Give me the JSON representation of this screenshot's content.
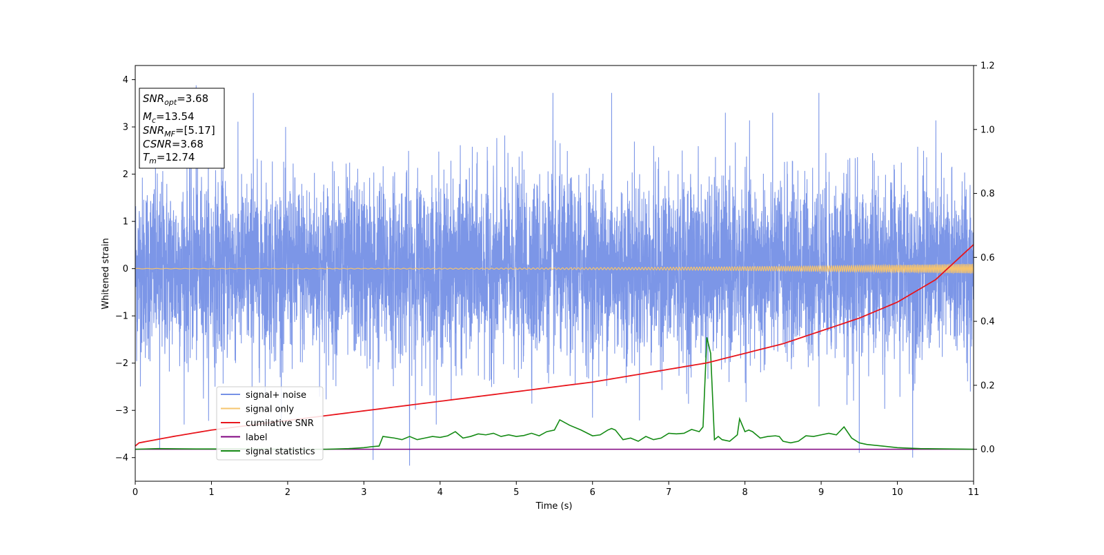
{
  "chart_data": {
    "type": "line",
    "xlabel": "Time (s)",
    "ylabel": "Whitened strain",
    "xlim": [
      0,
      11
    ],
    "ylim": [
      -4.5,
      4.3
    ],
    "ylim_right": [
      -0.1,
      1.2
    ],
    "x_ticks": [
      "0",
      "1",
      "2",
      "3",
      "4",
      "5",
      "6",
      "7",
      "8",
      "9",
      "10",
      "11"
    ],
    "y_ticks": [
      "−4",
      "−3",
      "−2",
      "−1",
      "0",
      "1",
      "2",
      "3",
      "4"
    ],
    "y_ticks_right": [
      "0.0",
      "0.2",
      "0.4",
      "0.6",
      "0.8",
      "1.0",
      "1.2"
    ],
    "grid": false,
    "legend_position": "lower-left",
    "stats_box": {
      "snr_opt": "=3.68",
      "mc": "=13.54",
      "snr_mf": "=[5.17]",
      "csnr": "=3.68",
      "tm": "=12.74"
    },
    "series": [
      {
        "name": "signal+ noise",
        "axis": "left",
        "color": "#7590e6",
        "description_kind": "noise",
        "noise_std": 0.95,
        "notable_peaks": [
          [
            0.8,
            3.88
          ],
          [
            1.55,
            3.72
          ],
          [
            5.48,
            3.72
          ],
          [
            6.25,
            3.72
          ],
          [
            8.97,
            3.72
          ],
          [
            3.6,
            -4.17
          ],
          [
            3.12,
            -4.05
          ],
          [
            9.5,
            -3.9
          ],
          [
            0.32,
            -3.8
          ],
          [
            10.2,
            -4.0
          ]
        ]
      },
      {
        "name": "signal only",
        "axis": "left",
        "color": "#f6c46e",
        "chirp": {
          "amplitude_start": 0.005,
          "amplitude_end": 0.1
        }
      },
      {
        "name": "cumilative SNR",
        "axis": "right",
        "color": "#e8141b",
        "x": [
          0,
          0.05,
          0.5,
          1,
          2,
          3,
          4,
          5,
          6,
          7,
          7.5,
          8,
          8.5,
          9,
          9.5,
          10,
          10.5,
          11
        ],
        "y": [
          0.01,
          0.02,
          0.04,
          0.06,
          0.09,
          0.12,
          0.15,
          0.18,
          0.21,
          0.25,
          0.27,
          0.3,
          0.33,
          0.37,
          0.41,
          0.46,
          0.53,
          0.64
        ]
      },
      {
        "name": "label",
        "axis": "right",
        "color": "#7f007f",
        "x": [
          0,
          11
        ],
        "y": [
          0,
          0
        ]
      },
      {
        "name": "signal statistics",
        "axis": "right",
        "color": "#138a13",
        "x": [
          0,
          0.3,
          0.8,
          1.5,
          2.0,
          2.5,
          2.8,
          3.0,
          3.1,
          3.2,
          3.25,
          3.4,
          3.5,
          3.6,
          3.7,
          3.8,
          3.9,
          4.0,
          4.1,
          4.2,
          4.3,
          4.4,
          4.5,
          4.6,
          4.7,
          4.8,
          4.9,
          5.0,
          5.1,
          5.2,
          5.3,
          5.4,
          5.5,
          5.57,
          5.7,
          5.85,
          6.0,
          6.1,
          6.2,
          6.25,
          6.3,
          6.4,
          6.5,
          6.6,
          6.7,
          6.8,
          6.9,
          7.0,
          7.1,
          7.2,
          7.3,
          7.4,
          7.45,
          7.5,
          7.55,
          7.6,
          7.65,
          7.7,
          7.8,
          7.9,
          7.93,
          8.0,
          8.05,
          8.1,
          8.2,
          8.3,
          8.4,
          8.45,
          8.5,
          8.6,
          8.7,
          8.8,
          8.9,
          9.0,
          9.1,
          9.2,
          9.3,
          9.4,
          9.5,
          9.6,
          9.8,
          10.0,
          10.3,
          10.7,
          11.0
        ],
        "y": [
          0,
          0.002,
          0.001,
          0.001,
          0,
          0,
          0.002,
          0.005,
          0.008,
          0.01,
          0.04,
          0.035,
          0.03,
          0.04,
          0.03,
          0.035,
          0.04,
          0.037,
          0.042,
          0.055,
          0.035,
          0.04,
          0.048,
          0.045,
          0.05,
          0.04,
          0.045,
          0.04,
          0.043,
          0.05,
          0.042,
          0.055,
          0.06,
          0.092,
          0.075,
          0.06,
          0.042,
          0.045,
          0.06,
          0.065,
          0.06,
          0.03,
          0.035,
          0.025,
          0.04,
          0.03,
          0.035,
          0.05,
          0.048,
          0.05,
          0.062,
          0.055,
          0.07,
          0.35,
          0.3,
          0.03,
          0.04,
          0.03,
          0.025,
          0.045,
          0.095,
          0.055,
          0.06,
          0.055,
          0.035,
          0.04,
          0.042,
          0.04,
          0.025,
          0.02,
          0.025,
          0.042,
          0.04,
          0.045,
          0.05,
          0.045,
          0.07,
          0.035,
          0.02,
          0.015,
          0.01,
          0.005,
          0.002,
          0.001,
          0
        ]
      }
    ]
  }
}
